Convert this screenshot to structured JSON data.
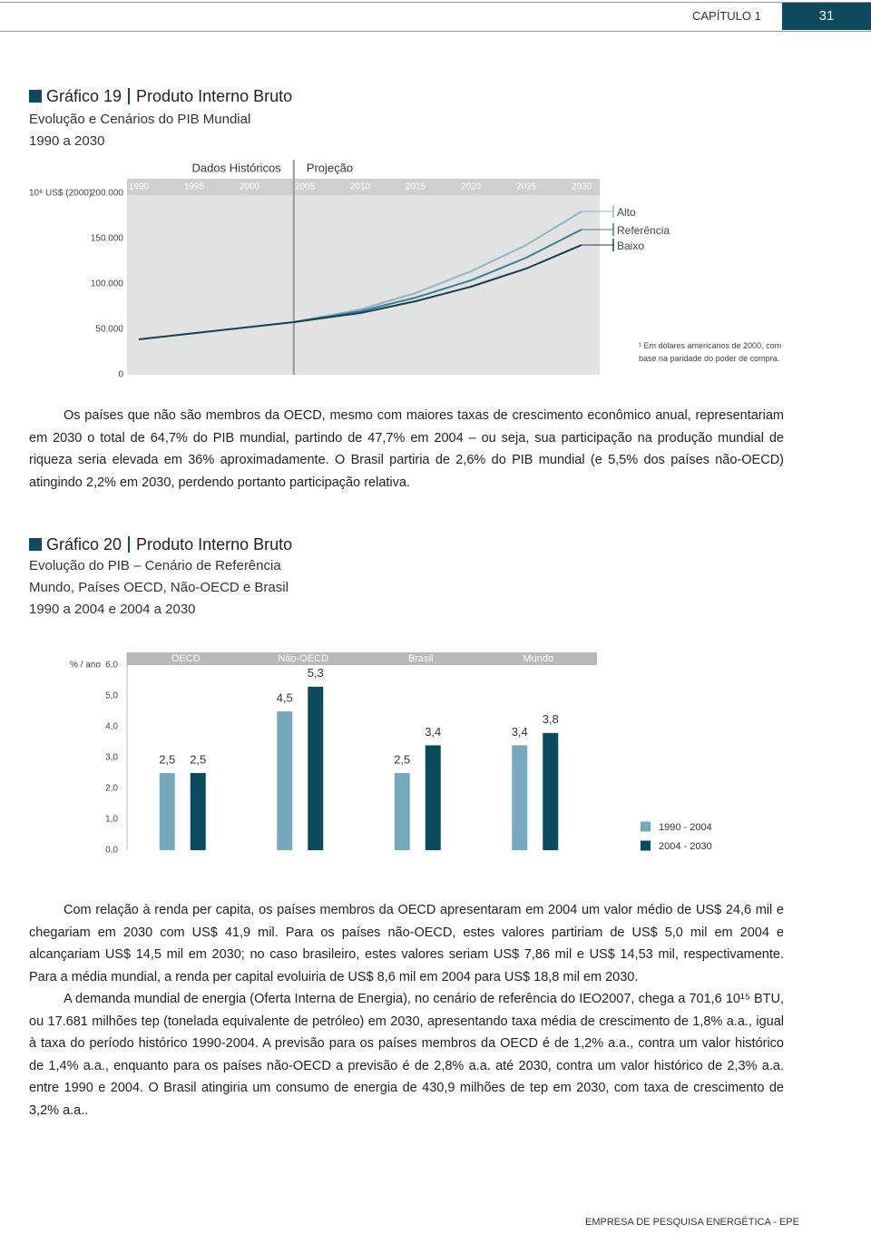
{
  "header": {
    "chapter": "CAPÍTULO 1",
    "page": "31"
  },
  "chart_data": [
    {
      "type": "line",
      "label": "Gráfico 19",
      "title": "Produto Interno Bruto",
      "subtitle": [
        "Evolução e Cenários do PIB Mundial",
        "1990 a 2030"
      ],
      "y_label": "10⁶ US$ (2000)",
      "x_annotations": [
        "Dados Históricos",
        "Projeção"
      ],
      "x": [
        1990,
        2004,
        2010,
        2015,
        2020,
        2025,
        2030
      ],
      "xlim": [
        1990,
        2030
      ],
      "xticks": [
        1990,
        1995,
        2000,
        2005,
        2010,
        2015,
        2020,
        2025,
        2030
      ],
      "ylim": [
        0,
        200000
      ],
      "yticks": [
        0,
        {
          "value": 50000,
          "label": "50.000"
        },
        {
          "value": 100000,
          "label": "100.000"
        },
        {
          "value": 150000,
          "label": "150.000"
        },
        {
          "value": 200000,
          "label": "200.000"
        }
      ],
      "historical": {
        "color": "#143f55",
        "values": [
          39000,
          58000,
          null,
          null,
          null,
          null,
          null
        ]
      },
      "series": [
        {
          "name": "Alto",
          "color": "#8db6c8",
          "values": [
            null,
            58000,
            72000,
            90000,
            114000,
            143000,
            180000
          ]
        },
        {
          "name": "Referência",
          "color": "#3d7e94",
          "values": [
            null,
            58000,
            70000,
            85000,
            104000,
            129000,
            160000
          ]
        },
        {
          "name": "Baixo",
          "color": "#143f55",
          "values": [
            null,
            58000,
            68000,
            81000,
            97000,
            117000,
            143000
          ]
        }
      ],
      "footnote": "¹ Em dólares americanos de 2000, com base na paridade do poder de compra."
    },
    {
      "type": "bar",
      "label": "Gráfico 20",
      "title": "Produto Interno Bruto",
      "subtitle": [
        "Evolução do PIB – Cenário de Referência",
        "Mundo, Países OECD, Não-OECD e Brasil",
        "1990 a 2004 e 2004 a 2030"
      ],
      "y_label": "% / ano",
      "categories": [
        "OECD",
        "Não-OECD",
        "Brasil",
        "Mundo"
      ],
      "ylim": [
        0,
        6
      ],
      "yticks": [
        {
          "value": 0,
          "label": "0,0"
        },
        {
          "value": 1,
          "label": "1,0"
        },
        {
          "value": 2,
          "label": "2,0"
        },
        {
          "value": 3,
          "label": "3,0"
        },
        {
          "value": 4,
          "label": "4,0"
        },
        {
          "value": 5,
          "label": "5,0"
        },
        {
          "value": 6,
          "label": "6,0"
        }
      ],
      "series": [
        {
          "name": "1990 - 2004",
          "color": "#77a9bd",
          "values": [
            2.5,
            4.5,
            2.5,
            3.4
          ],
          "value_labels": [
            "2,5",
            "4,5",
            "2,5",
            "3,4"
          ]
        },
        {
          "name": "2004 - 2030",
          "color": "#0c4a5e",
          "values": [
            2.5,
            5.3,
            3.4,
            3.8
          ],
          "value_labels": [
            "2,5",
            "5,3",
            "3,4",
            "3,8"
          ]
        }
      ]
    }
  ],
  "paragraphs": [
    "Os países que não são membros da OECD, mesmo com maiores taxas de crescimento econômico anual, representariam em 2030 o total de 64,7% do PIB mundial, partindo de 47,7% em 2004 – ou seja, sua participação na produção mundial de riqueza seria elevada em 36% aproximadamente. O Brasil partiria de 2,6% do PIB mundial (e 5,5% dos países não-OECD) atingindo 2,2% em 2030, perdendo portanto participação relativa.",
    "Com relação à renda per capita, os países membros da OECD apresentaram em 2004 um valor médio de US$ 24,6 mil e chegariam em 2030 com US$ 41,9 mil. Para os países não-OECD, estes valores partiriam de US$ 5,0 mil em 2004 e alcançariam US$ 14,5 mil em 2030; no caso brasileiro, estes valores seriam US$ 7,86 mil e US$ 14,53 mil, respectivamente. Para a média mundial, a renda per capital evoluiria de US$ 8,6 mil em 2004 para US$ 18,8 mil em 2030.",
    "A demanda mundial de energia (Oferta Interna de Energia), no cenário de referência do IEO2007, chega a 701,6 10¹⁵ BTU, ou 17.681 milhões tep (tonelada equivalente de petróleo) em 2030, apresentando taxa média de crescimento de 1,8% a.a., igual à taxa do período histórico 1990-2004. A previsão para os países membros da OECD é de 1,2% a.a., contra um valor histórico de 1,4% a.a., enquanto para os países não-OECD a previsão é de 2,8% a.a. até 2030, contra um valor histórico de 2,3% a.a. entre 1990 e 2004. O Brasil atingiria um consumo de energia de 430,9 milhões de tep em 2030, com taxa de crescimento de 3,2% a.a.."
  ],
  "footer": "EMPRESA DE PESQUISA ENERGÉTICA - EPE"
}
